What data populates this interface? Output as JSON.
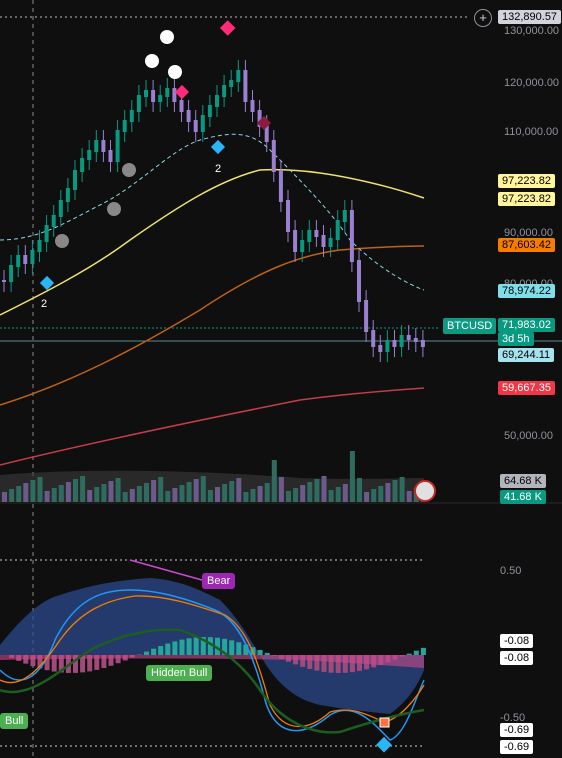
{
  "toolbar": {
    "add_symbol_icon": "plus-circle-icon",
    "top_price": "132,890.57"
  },
  "price_axis": [
    "130,000.00",
    "120,000.00",
    "110,000.00",
    "90,000.00",
    "80,000.00",
    "50,000.00"
  ],
  "price_tags": [
    {
      "text": "97,223.82",
      "color": "#fff59d"
    },
    {
      "text": "97,223.82",
      "color": "#fff59d"
    },
    {
      "text": "87,603.42",
      "color": "#f57c00"
    },
    {
      "text": "78,974.22",
      "color": "#80deea"
    },
    {
      "text": "71,983.02",
      "color": "#089981"
    },
    {
      "text": "3d 5h",
      "color": "#089981"
    },
    {
      "text": "69,244.11",
      "color": "#a5e4ee"
    },
    {
      "text": "59,667.35",
      "color": "#f23645"
    }
  ],
  "symbol": "BTCUSD",
  "volume_tags": [
    {
      "text": "64.68 K",
      "color": "#b2b5be"
    },
    {
      "text": "41.68 K",
      "color": "#089981"
    }
  ],
  "markers": {
    "label_a": "2",
    "label_b": "2",
    "label_c": "2"
  },
  "oscillator": {
    "axis_top": "0.50",
    "axis_bottom": "-0.50",
    "tags": [
      "-0.08",
      "-0.08",
      "-0.69",
      "-0.69"
    ],
    "annotations": {
      "bear": "Bear",
      "hidden_bull": "Hidden Bull",
      "bull": "Bull"
    }
  },
  "colors": {
    "bull": "#089981",
    "bear": "#9b7fd1",
    "ema_fast": "#80deea",
    "ema_mid": "#ffeb3b",
    "ema_slow": "#f57c00",
    "ema_long": "#f23645"
  }
}
